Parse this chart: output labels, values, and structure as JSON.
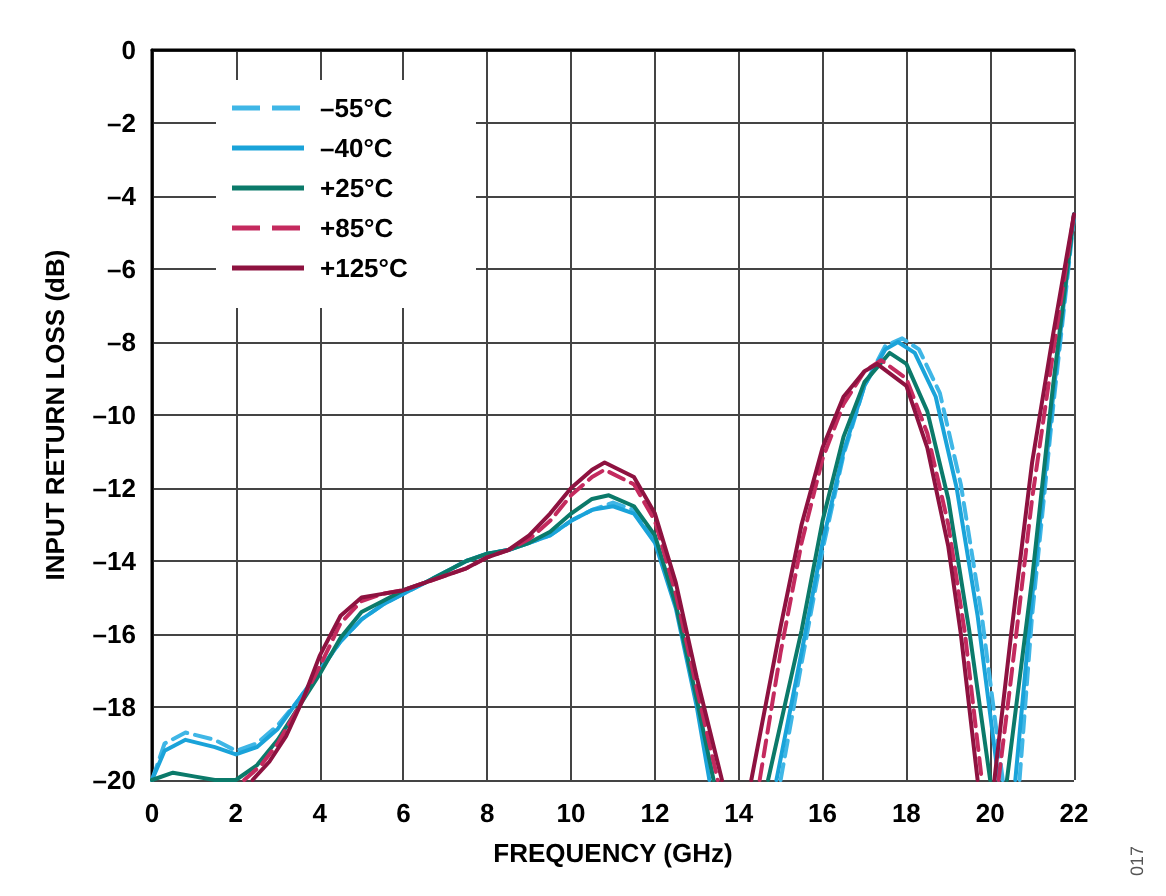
{
  "chart_data": {
    "type": "line",
    "xlabel": "FREQUENCY (GHz)",
    "ylabel": "INPUT RETURN LOSS (dB)",
    "xlim": [
      0,
      22
    ],
    "xticks": [
      0,
      2,
      4,
      6,
      8,
      10,
      12,
      14,
      16,
      18,
      20,
      22
    ],
    "ylim": [
      -20,
      0
    ],
    "yticks": [
      {
        "value": -20,
        "label": "–20"
      },
      {
        "value": -18,
        "label": "–18"
      },
      {
        "value": -16,
        "label": "–16"
      },
      {
        "value": -14,
        "label": "–14"
      },
      {
        "value": -12,
        "label": "–12"
      },
      {
        "value": -10,
        "label": "–10"
      },
      {
        "value": -8,
        "label": "–8"
      },
      {
        "value": -6,
        "label": "–6"
      },
      {
        "value": -4,
        "label": "–4"
      },
      {
        "value": -2,
        "label": "–2"
      },
      0
    ],
    "grid": true,
    "legend": "top left",
    "marker": "none",
    "annotations": [
      "017"
    ],
    "series": [
      {
        "name": "–55°C",
        "color": "#3fb6e6",
        "line_style": "dashed",
        "x": [
          0,
          0.3,
          0.8,
          1.5,
          2,
          2.5,
          3,
          3.5,
          4,
          4.5,
          5,
          5.5,
          6,
          6.5,
          7,
          7.5,
          8,
          8.5,
          9,
          9.5,
          10,
          10.5,
          11,
          11.5,
          12,
          12.5,
          13,
          13.4,
          14,
          15,
          15.5,
          16,
          16.5,
          17,
          17.5,
          17.9,
          18.3,
          18.8,
          19.3,
          19.8,
          20.3,
          20.5,
          20.7,
          21,
          21.5,
          22
        ],
        "values": [
          -20,
          -19.0,
          -18.7,
          -18.9,
          -19.2,
          -19.0,
          -18.5,
          -17.8,
          -17.0,
          -16.2,
          -15.6,
          -15.2,
          -14.9,
          -14.6,
          -14.3,
          -14.0,
          -13.8,
          -13.7,
          -13.5,
          -13.3,
          -12.9,
          -12.6,
          -12.4,
          -12.6,
          -13.4,
          -15.2,
          -17.8,
          -20,
          null,
          -20,
          -16.8,
          -13.7,
          -11.1,
          -9.2,
          -8.1,
          -7.9,
          -8.2,
          -9.4,
          -11.9,
          -15.5,
          -20,
          null,
          -20,
          -15.5,
          -9.8,
          -4.6
        ]
      },
      {
        "name": "–40°C",
        "color": "#1aa3d9",
        "line_style": "solid",
        "x": [
          0,
          0.3,
          0.8,
          1.5,
          2,
          2.5,
          3,
          3.5,
          4,
          4.5,
          5,
          5.5,
          6,
          6.5,
          7,
          7.5,
          8,
          8.5,
          9,
          9.5,
          10,
          10.5,
          11,
          11.5,
          12,
          12.5,
          13,
          13.3,
          14,
          14.9,
          15.5,
          16,
          16.5,
          17,
          17.5,
          17.8,
          18.2,
          18.7,
          19.2,
          19.7,
          20.2,
          20.4,
          20.6,
          21,
          21.5,
          22
        ],
        "values": [
          -20,
          -19.2,
          -18.9,
          -19.1,
          -19.3,
          -19.1,
          -18.6,
          -17.8,
          -17.0,
          -16.2,
          -15.6,
          -15.2,
          -14.9,
          -14.6,
          -14.3,
          -14.0,
          -13.8,
          -13.7,
          -13.5,
          -13.3,
          -12.9,
          -12.6,
          -12.5,
          -12.7,
          -13.5,
          -15.3,
          -18.0,
          -20,
          null,
          -20,
          -16.5,
          -13.5,
          -11.0,
          -9.2,
          -8.2,
          -8.0,
          -8.3,
          -9.5,
          -12.0,
          -15.5,
          -20,
          null,
          -20,
          -15.0,
          -9.5,
          -4.5
        ]
      },
      {
        "name": "+25°C",
        "color": "#0b7a6a",
        "line_style": "solid",
        "x": [
          0,
          0.5,
          1,
          1.5,
          2,
          2.5,
          3,
          3.5,
          4,
          4.5,
          5,
          5.5,
          6,
          6.5,
          7,
          7.5,
          8,
          8.5,
          9,
          9.5,
          10,
          10.5,
          10.9,
          11.5,
          12,
          12.5,
          13,
          13.4,
          14,
          14.7,
          15.5,
          16,
          16.5,
          17,
          17.6,
          18,
          18.5,
          19,
          19.5,
          20,
          20.2,
          20.4,
          21,
          21.5,
          22
        ],
        "values": [
          -20,
          -19.8,
          -19.9,
          -20,
          -20,
          -19.6,
          -18.9,
          -18.0,
          -17.1,
          -16.1,
          -15.4,
          -15.1,
          -14.8,
          -14.6,
          -14.3,
          -14.0,
          -13.8,
          -13.7,
          -13.5,
          -13.2,
          -12.7,
          -12.3,
          -12.2,
          -12.5,
          -13.3,
          -15.2,
          -17.8,
          -20,
          null,
          -20,
          -15.9,
          -12.9,
          -10.6,
          -9.1,
          -8.3,
          -8.6,
          -9.9,
          -12.3,
          -15.9,
          -20,
          null,
          -20,
          -14.5,
          -9.2,
          -4.5
        ]
      },
      {
        "name": "+85°C",
        "color": "#c42a5e",
        "line_style": "dashed",
        "x": [
          2.2,
          2.6,
          3,
          3.5,
          4,
          4.5,
          5,
          5.5,
          6,
          6.5,
          7,
          7.5,
          8,
          8.5,
          9,
          9.5,
          10,
          10.5,
          10.8,
          11.5,
          12,
          12.5,
          13,
          13.5,
          14,
          14.5,
          15,
          15.5,
          16,
          16.5,
          17,
          17.4,
          18,
          18.5,
          19,
          19.4,
          19.8,
          20,
          20.2,
          20.5,
          21,
          21.5,
          22
        ],
        "values": [
          -20,
          -19.6,
          -19.0,
          -18.0,
          -16.9,
          -15.7,
          -15.1,
          -14.9,
          -14.8,
          -14.6,
          -14.4,
          -14.2,
          -13.9,
          -13.7,
          -13.4,
          -12.9,
          -12.2,
          -11.7,
          -11.5,
          -11.9,
          -12.9,
          -14.9,
          -17.5,
          -20,
          null,
          -20,
          -16.5,
          -13.5,
          -11.2,
          -9.7,
          -8.8,
          -8.5,
          -9.0,
          -10.5,
          -13.0,
          -16.0,
          -20,
          null,
          -20,
          -17.2,
          -12.3,
          -8.3,
          -4.5
        ]
      },
      {
        "name": "+125°C",
        "color": "#8e1240",
        "line_style": "solid",
        "x": [
          2.4,
          2.8,
          3.2,
          3.6,
          4,
          4.5,
          5,
          5.5,
          6,
          6.5,
          7,
          7.5,
          8,
          8.5,
          9,
          9.5,
          10,
          10.5,
          10.8,
          11.5,
          12,
          12.5,
          13,
          13.6,
          14,
          14.3,
          15,
          15.5,
          16,
          16.5,
          17,
          17.3,
          18,
          18.5,
          19,
          19.3,
          19.7,
          19.9,
          20.1,
          20.5,
          21,
          21.5,
          22
        ],
        "values": [
          -20,
          -19.5,
          -18.8,
          -17.8,
          -16.6,
          -15.5,
          -15.0,
          -14.9,
          -14.8,
          -14.6,
          -14.4,
          -14.2,
          -13.9,
          -13.7,
          -13.3,
          -12.7,
          -12.0,
          -11.5,
          -11.3,
          -11.7,
          -12.7,
          -14.6,
          -17.2,
          -20,
          null,
          -20,
          -15.8,
          -13.0,
          -10.9,
          -9.5,
          -8.8,
          -8.6,
          -9.2,
          -10.9,
          -13.6,
          -16.0,
          -20,
          null,
          -20,
          -16.0,
          -11.3,
          -7.8,
          -4.5
        ]
      }
    ]
  }
}
